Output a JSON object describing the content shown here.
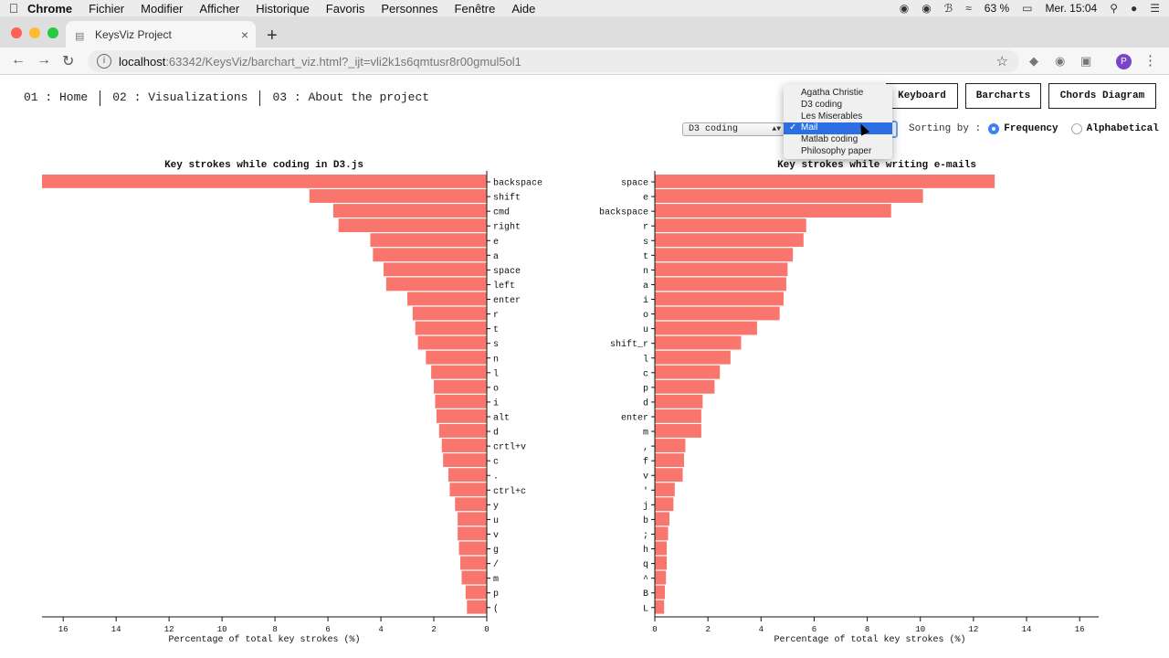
{
  "menubar": {
    "app": "Chrome",
    "items": [
      "Fichier",
      "Modifier",
      "Afficher",
      "Historique",
      "Favoris",
      "Personnes",
      "Fenêtre",
      "Aide"
    ],
    "battery": "63 %",
    "clock": "Mer. 15:04"
  },
  "browser": {
    "tab_title": "KeysViz Project",
    "url_host": "localhost",
    "url_rest": ":63342/KeysViz/barchart_viz.html?_ijt=vli2k1s6qmtusr8r00gmul5ol1",
    "profile_initial": "P"
  },
  "nav": {
    "items": [
      "01 : Home",
      "02 : Visualizations",
      "03 : About the project"
    ]
  },
  "buttons": {
    "keyboard": "Keyboard",
    "barcharts": "Barcharts",
    "chords": "Chords Diagram"
  },
  "dataset_select": {
    "value": "D3 coding",
    "options": [
      "Agatha Christie",
      "D3 coding",
      "Les Miserables",
      "Mail",
      "Matlab coding",
      "Philosophy paper"
    ],
    "highlighted": "Mail"
  },
  "sorting": {
    "label": "Sorting by :",
    "options": [
      "Frequency",
      "Alphabetical"
    ],
    "selected": "Frequency"
  },
  "chart_data": [
    {
      "type": "bar",
      "orientation": "horizontal",
      "title": "Key strokes while coding in D3.js",
      "xlabel": "Percentage of total key strokes (%)",
      "xlim": [
        0,
        16.8
      ],
      "x_reversed": true,
      "xticks": [
        16,
        14,
        12,
        10,
        8,
        6,
        4,
        2,
        0
      ],
      "categories": [
        "backspace",
        "shift",
        "cmd",
        "right",
        "e",
        "a",
        "space",
        "left",
        "enter",
        "r",
        "t",
        "s",
        "n",
        "l",
        "o",
        "i",
        "alt",
        "d",
        "crtl+v",
        "c",
        ".",
        "ctrl+c",
        "y",
        "u",
        "v",
        "g",
        "/",
        "m",
        "p",
        "("
      ],
      "values": [
        16.8,
        6.7,
        5.8,
        5.6,
        4.4,
        4.3,
        3.9,
        3.8,
        3.0,
        2.8,
        2.7,
        2.6,
        2.3,
        2.1,
        2.0,
        1.95,
        1.9,
        1.8,
        1.7,
        1.65,
        1.45,
        1.4,
        1.2,
        1.1,
        1.1,
        1.05,
        1.0,
        0.95,
        0.8,
        0.75
      ]
    },
    {
      "type": "bar",
      "orientation": "horizontal",
      "title": "Key strokes while writing e-mails",
      "xlabel": "Percentage of total key strokes (%)",
      "xlim": [
        0,
        16.2
      ],
      "x_reversed": false,
      "xticks": [
        0,
        2,
        4,
        6,
        8,
        10,
        12,
        14,
        16
      ],
      "categories": [
        "space",
        "e",
        "backspace",
        "r",
        "s",
        "t",
        "n",
        "a",
        "i",
        "o",
        "u",
        "shift_r",
        "l",
        "c",
        "p",
        "d",
        "enter",
        "m",
        ",",
        "f",
        "v",
        "'",
        "j",
        "b",
        ";",
        "h",
        "q",
        "^",
        "B",
        "L"
      ],
      "values": [
        12.8,
        10.1,
        8.9,
        5.7,
        5.6,
        5.2,
        5.0,
        4.95,
        4.85,
        4.7,
        3.85,
        3.25,
        2.85,
        2.45,
        2.25,
        1.8,
        1.75,
        1.75,
        1.15,
        1.1,
        1.05,
        0.75,
        0.7,
        0.55,
        0.5,
        0.45,
        0.45,
        0.42,
        0.38,
        0.35
      ]
    }
  ]
}
